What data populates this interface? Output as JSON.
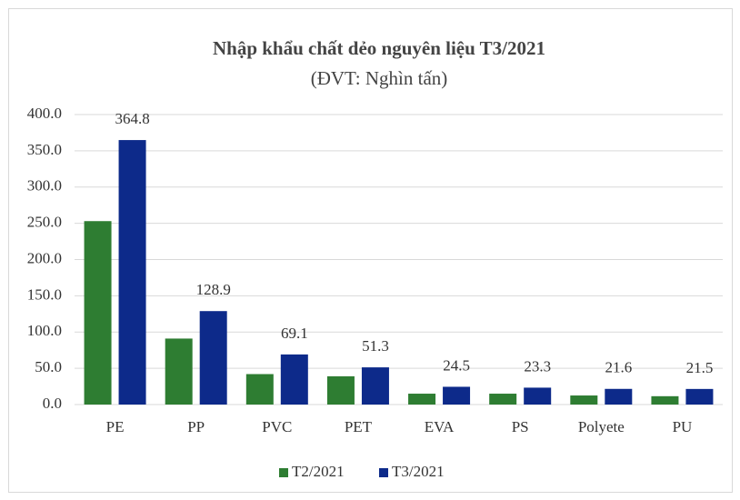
{
  "chart_data": {
    "type": "bar",
    "title": "Nhập khẩu chất dẻo nguyên liệu T3/2021",
    "subtitle": "(ĐVT: Nghìn tấn)",
    "categories": [
      "PE",
      "PP",
      "PVC",
      "PET",
      "EVA",
      "PS",
      "Polyete",
      "PU"
    ],
    "series": [
      {
        "name": "T2/2021",
        "color": "#2e7d32",
        "values": [
          253,
          91,
          42,
          39,
          15,
          15,
          12.5,
          11.5
        ]
      },
      {
        "name": "T3/2021",
        "color": "#0d2a8a",
        "values": [
          364.8,
          128.9,
          69.1,
          51.3,
          24.5,
          23.3,
          21.6,
          21.5
        ],
        "show_labels": true
      }
    ],
    "ylim": [
      0,
      400
    ],
    "yticks": [
      {
        "value": 0,
        "label": "0.0"
      },
      {
        "value": 50,
        "label": "50.0"
      },
      {
        "value": 100,
        "label": "100.0"
      },
      {
        "value": 150,
        "label": "150.0"
      },
      {
        "value": 200,
        "label": "200.0"
      },
      {
        "value": 250,
        "label": "250.0"
      },
      {
        "value": 300,
        "label": "300.0"
      },
      {
        "value": 350,
        "label": "350.0"
      },
      {
        "value": 400,
        "label": "400.0"
      }
    ],
    "grid": true,
    "legend": "bottom"
  }
}
